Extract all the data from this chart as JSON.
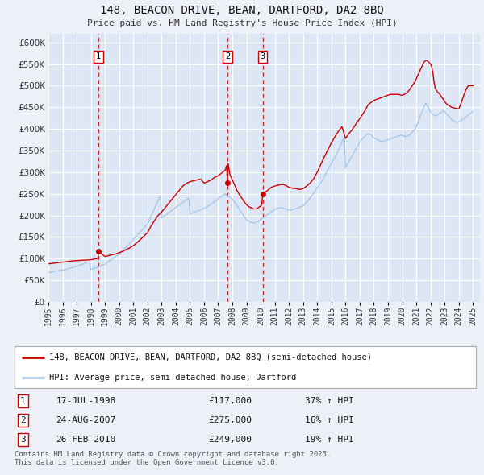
{
  "title": "148, BEACON DRIVE, BEAN, DARTFORD, DA2 8BQ",
  "subtitle": "Price paid vs. HM Land Registry's House Price Index (HPI)",
  "ylim": [
    0,
    620000
  ],
  "yticks": [
    0,
    50000,
    100000,
    150000,
    200000,
    250000,
    300000,
    350000,
    400000,
    450000,
    500000,
    550000,
    600000
  ],
  "ytick_labels": [
    "£0",
    "£50K",
    "£100K",
    "£150K",
    "£200K",
    "£250K",
    "£300K",
    "£350K",
    "£400K",
    "£450K",
    "£500K",
    "£550K",
    "£600K"
  ],
  "background_color": "#edf0f7",
  "plot_bg_color": "#dce6f5",
  "grid_color": "#ffffff",
  "red_line_color": "#cc0000",
  "blue_line_color": "#a8c8e8",
  "legend_label_red": "148, BEACON DRIVE, BEAN, DARTFORD, DA2 8BQ (semi-detached house)",
  "legend_label_blue": "HPI: Average price, semi-detached house, Dartford",
  "transactions": [
    {
      "num": 1,
      "date_str": "17-JUL-1998",
      "price": 117000,
      "pct": "37%",
      "dir": "↑",
      "year": 1998.54
    },
    {
      "num": 2,
      "date_str": "24-AUG-2007",
      "price": 275000,
      "pct": "16%",
      "dir": "↑",
      "year": 2007.65
    },
    {
      "num": 3,
      "date_str": "26-FEB-2010",
      "price": 249000,
      "pct": "19%",
      "dir": "↑",
      "year": 2010.15
    }
  ],
  "footer": "Contains HM Land Registry data © Crown copyright and database right 2025.\nThis data is licensed under the Open Government Licence v3.0.",
  "hpi_years": [
    1995.0,
    1995.08,
    1995.17,
    1995.25,
    1995.33,
    1995.42,
    1995.5,
    1995.58,
    1995.67,
    1995.75,
    1995.83,
    1995.92,
    1996.0,
    1996.08,
    1996.17,
    1996.25,
    1996.33,
    1996.42,
    1996.5,
    1996.58,
    1996.67,
    1996.75,
    1996.83,
    1996.92,
    1997.0,
    1997.08,
    1997.17,
    1997.25,
    1997.33,
    1997.42,
    1997.5,
    1997.58,
    1997.67,
    1997.75,
    1997.83,
    1997.92,
    1998.0,
    1998.08,
    1998.17,
    1998.25,
    1998.33,
    1998.42,
    1998.5,
    1998.58,
    1998.67,
    1998.75,
    1998.83,
    1998.92,
    1999.0,
    1999.08,
    1999.17,
    1999.25,
    1999.33,
    1999.42,
    1999.5,
    1999.58,
    1999.67,
    1999.75,
    1999.83,
    1999.92,
    2000.0,
    2000.08,
    2000.17,
    2000.25,
    2000.33,
    2000.42,
    2000.5,
    2000.58,
    2000.67,
    2000.75,
    2000.83,
    2000.92,
    2001.0,
    2001.08,
    2001.17,
    2001.25,
    2001.33,
    2001.42,
    2001.5,
    2001.58,
    2001.67,
    2001.75,
    2001.83,
    2001.92,
    2002.0,
    2002.08,
    2002.17,
    2002.25,
    2002.33,
    2002.42,
    2002.5,
    2002.58,
    2002.67,
    2002.75,
    2002.83,
    2002.92,
    2003.0,
    2003.08,
    2003.17,
    2003.25,
    2003.33,
    2003.42,
    2003.5,
    2003.58,
    2003.67,
    2003.75,
    2003.83,
    2003.92,
    2004.0,
    2004.08,
    2004.17,
    2004.25,
    2004.33,
    2004.42,
    2004.5,
    2004.58,
    2004.67,
    2004.75,
    2004.83,
    2004.92,
    2005.0,
    2005.08,
    2005.17,
    2005.25,
    2005.33,
    2005.42,
    2005.5,
    2005.58,
    2005.67,
    2005.75,
    2005.83,
    2005.92,
    2006.0,
    2006.08,
    2006.17,
    2006.25,
    2006.33,
    2006.42,
    2006.5,
    2006.58,
    2006.67,
    2006.75,
    2006.83,
    2006.92,
    2007.0,
    2007.08,
    2007.17,
    2007.25,
    2007.33,
    2007.42,
    2007.5,
    2007.58,
    2007.67,
    2007.75,
    2007.83,
    2007.92,
    2008.0,
    2008.08,
    2008.17,
    2008.25,
    2008.33,
    2008.42,
    2008.5,
    2008.58,
    2008.67,
    2008.75,
    2008.83,
    2008.92,
    2009.0,
    2009.08,
    2009.17,
    2009.25,
    2009.33,
    2009.42,
    2009.5,
    2009.58,
    2009.67,
    2009.75,
    2009.83,
    2009.92,
    2010.0,
    2010.08,
    2010.17,
    2010.25,
    2010.33,
    2010.42,
    2010.5,
    2010.58,
    2010.67,
    2010.75,
    2010.83,
    2010.92,
    2011.0,
    2011.08,
    2011.17,
    2011.25,
    2011.33,
    2011.42,
    2011.5,
    2011.58,
    2011.67,
    2011.75,
    2011.83,
    2011.92,
    2012.0,
    2012.08,
    2012.17,
    2012.25,
    2012.33,
    2012.42,
    2012.5,
    2012.58,
    2012.67,
    2012.75,
    2012.83,
    2012.92,
    2013.0,
    2013.08,
    2013.17,
    2013.25,
    2013.33,
    2013.42,
    2013.5,
    2013.58,
    2013.67,
    2013.75,
    2013.83,
    2013.92,
    2014.0,
    2014.08,
    2014.17,
    2014.25,
    2014.33,
    2014.42,
    2014.5,
    2014.58,
    2014.67,
    2014.75,
    2014.83,
    2014.92,
    2015.0,
    2015.08,
    2015.17,
    2015.25,
    2015.33,
    2015.42,
    2015.5,
    2015.58,
    2015.67,
    2015.75,
    2015.83,
    2015.92,
    2016.0,
    2016.08,
    2016.17,
    2016.25,
    2016.33,
    2016.42,
    2016.5,
    2016.58,
    2016.67,
    2016.75,
    2016.83,
    2016.92,
    2017.0,
    2017.08,
    2017.17,
    2017.25,
    2017.33,
    2017.42,
    2017.5,
    2017.58,
    2017.67,
    2017.75,
    2017.83,
    2017.92,
    2018.0,
    2018.08,
    2018.17,
    2018.25,
    2018.33,
    2018.42,
    2018.5,
    2018.58,
    2018.67,
    2018.75,
    2018.83,
    2018.92,
    2019.0,
    2019.08,
    2019.17,
    2019.25,
    2019.33,
    2019.42,
    2019.5,
    2019.58,
    2019.67,
    2019.75,
    2019.83,
    2019.92,
    2020.0,
    2020.08,
    2020.17,
    2020.25,
    2020.33,
    2020.42,
    2020.5,
    2020.58,
    2020.67,
    2020.75,
    2020.83,
    2020.92,
    2021.0,
    2021.08,
    2021.17,
    2021.25,
    2021.33,
    2021.42,
    2021.5,
    2021.58,
    2021.67,
    2021.75,
    2021.83,
    2021.92,
    2022.0,
    2022.08,
    2022.17,
    2022.25,
    2022.33,
    2022.42,
    2022.5,
    2022.58,
    2022.67,
    2022.75,
    2022.83,
    2022.92,
    2023.0,
    2023.08,
    2023.17,
    2023.25,
    2023.33,
    2023.42,
    2023.5,
    2023.58,
    2023.67,
    2023.75,
    2023.83,
    2023.92,
    2024.0,
    2024.08,
    2024.17,
    2024.25,
    2024.33,
    2024.42,
    2024.5,
    2024.58,
    2024.67,
    2024.75,
    2024.83,
    2024.92,
    2025.0
  ],
  "hpi_values": [
    68000,
    68500,
    69000,
    69500,
    70000,
    70500,
    71000,
    71500,
    72000,
    72500,
    73000,
    73500,
    74000,
    74500,
    75000,
    75500,
    76000,
    76800,
    77600,
    78400,
    79200,
    80000,
    80800,
    81600,
    82400,
    83200,
    84000,
    85000,
    86000,
    87000,
    88000,
    89000,
    90000,
    91000,
    92000,
    93000,
    75000,
    76000,
    77000,
    78000,
    79000,
    80000,
    81000,
    82000,
    83000,
    84000,
    85000,
    86000,
    87000,
    89000,
    91000,
    93000,
    95000,
    97000,
    99000,
    101000,
    103000,
    105000,
    107000,
    109000,
    111000,
    113500,
    116000,
    118500,
    121000,
    123500,
    126000,
    129000,
    132000,
    135000,
    138000,
    141000,
    144000,
    147000,
    150000,
    153000,
    156000,
    159000,
    162000,
    165000,
    168000,
    171000,
    174000,
    177000,
    180000,
    186000,
    192000,
    198000,
    204000,
    210000,
    216000,
    222000,
    228000,
    234000,
    240000,
    246000,
    194000,
    196000,
    198000,
    200000,
    202000,
    204000,
    206000,
    208000,
    210000,
    212000,
    214000,
    216000,
    218000,
    220000,
    222000,
    224000,
    226000,
    228000,
    230000,
    232000,
    234000,
    236000,
    238000,
    240000,
    204000,
    205000,
    206000,
    207000,
    208000,
    209000,
    210000,
    211000,
    212000,
    213000,
    214000,
    215000,
    216000,
    217500,
    219000,
    220500,
    222000,
    224000,
    226000,
    228000,
    230000,
    232000,
    234000,
    236000,
    238000,
    240000,
    242000,
    244000,
    246000,
    248000,
    250000,
    248000,
    246000,
    244000,
    242000,
    240000,
    238000,
    234000,
    230000,
    226000,
    222000,
    218000,
    214000,
    210000,
    206000,
    202000,
    198000,
    194000,
    190000,
    188000,
    186000,
    185000,
    184000,
    183000,
    182000,
    183000,
    184000,
    185000,
    186000,
    188000,
    190000,
    192000,
    194000,
    196000,
    198000,
    200000,
    202000,
    204000,
    206000,
    208000,
    210000,
    212000,
    214000,
    215000,
    216000,
    217000,
    218000,
    218000,
    218000,
    217000,
    216000,
    215000,
    214000,
    213000,
    212000,
    212000,
    212000,
    213000,
    214000,
    215000,
    216000,
    217000,
    218000,
    219000,
    220000,
    221000,
    222000,
    225000,
    228000,
    231000,
    234000,
    237000,
    240000,
    244000,
    248000,
    252000,
    256000,
    260000,
    264000,
    268000,
    272000,
    276000,
    280000,
    285000,
    290000,
    295000,
    300000,
    305000,
    310000,
    315000,
    320000,
    325000,
    330000,
    335000,
    340000,
    346000,
    352000,
    358000,
    364000,
    370000,
    376000,
    382000,
    310000,
    315000,
    320000,
    325000,
    330000,
    335000,
    340000,
    345000,
    350000,
    355000,
    360000,
    365000,
    370000,
    373000,
    376000,
    379000,
    382000,
    385000,
    388000,
    388000,
    388000,
    388000,
    385000,
    382000,
    380000,
    378000,
    376000,
    375000,
    374000,
    373000,
    372000,
    372000,
    372000,
    372000,
    373000,
    374000,
    375000,
    376000,
    377000,
    378000,
    379000,
    380000,
    381000,
    382000,
    383000,
    384000,
    385000,
    386000,
    385000,
    384000,
    383000,
    383000,
    383000,
    384000,
    385000,
    388000,
    391000,
    394000,
    397000,
    400000,
    405000,
    412000,
    419000,
    426000,
    433000,
    440000,
    447000,
    454000,
    460000,
    455000,
    450000,
    445000,
    440000,
    437000,
    434000,
    432000,
    431000,
    430000,
    432000,
    434000,
    436000,
    438000,
    440000,
    442000,
    440000,
    437000,
    434000,
    431000,
    428000,
    425000,
    422000,
    420000,
    418000,
    417000,
    416000,
    415000,
    416000,
    418000,
    420000,
    422000,
    424000,
    426000,
    428000,
    430000,
    432000,
    434000,
    436000,
    438000,
    440000
  ],
  "red_years": [
    1995.0,
    1995.25,
    1995.5,
    1995.75,
    1996.0,
    1996.25,
    1996.5,
    1996.75,
    1997.0,
    1997.25,
    1997.5,
    1997.75,
    1998.0,
    1998.25,
    1998.5,
    1998.54,
    1999.0,
    1999.25,
    1999.5,
    1999.75,
    2000.0,
    2000.25,
    2000.5,
    2000.75,
    2001.0,
    2001.25,
    2001.5,
    2001.75,
    2002.0,
    2002.25,
    2002.5,
    2002.75,
    2003.0,
    2003.25,
    2003.5,
    2003.75,
    2004.0,
    2004.25,
    2004.5,
    2004.75,
    2005.0,
    2005.25,
    2005.5,
    2005.75,
    2006.0,
    2006.25,
    2006.5,
    2006.75,
    2007.0,
    2007.25,
    2007.5,
    2007.6,
    2007.65,
    2007.7,
    2007.83,
    2007.92,
    2008.0,
    2008.17,
    2008.33,
    2008.5,
    2008.67,
    2008.83,
    2009.0,
    2009.17,
    2009.33,
    2009.5,
    2009.67,
    2009.83,
    2010.0,
    2010.08,
    2010.15,
    2010.25,
    2010.5,
    2010.75,
    2011.0,
    2011.25,
    2011.5,
    2011.75,
    2012.0,
    2012.25,
    2012.5,
    2012.75,
    2013.0,
    2013.25,
    2013.5,
    2013.75,
    2014.0,
    2014.25,
    2014.5,
    2014.75,
    2015.0,
    2015.25,
    2015.5,
    2015.75,
    2016.0,
    2016.08,
    2016.17,
    2016.25,
    2016.33,
    2016.42,
    2016.5,
    2016.58,
    2016.67,
    2016.75,
    2016.83,
    2016.92,
    2017.0,
    2017.08,
    2017.17,
    2017.25,
    2017.33,
    2017.42,
    2017.5,
    2017.58,
    2017.67,
    2017.75,
    2017.83,
    2017.92,
    2018.0,
    2018.08,
    2018.17,
    2018.25,
    2018.33,
    2018.42,
    2018.5,
    2018.58,
    2018.67,
    2018.75,
    2018.83,
    2018.92,
    2019.0,
    2019.08,
    2019.17,
    2019.25,
    2019.33,
    2019.42,
    2019.5,
    2019.58,
    2019.67,
    2019.75,
    2019.83,
    2019.92,
    2020.0,
    2020.08,
    2020.17,
    2020.25,
    2020.33,
    2020.42,
    2020.5,
    2020.58,
    2020.67,
    2020.75,
    2020.83,
    2020.92,
    2021.0,
    2021.08,
    2021.17,
    2021.25,
    2021.33,
    2021.42,
    2021.5,
    2021.58,
    2021.67,
    2021.75,
    2021.83,
    2021.92,
    2022.0,
    2022.08,
    2022.17,
    2022.25,
    2022.33,
    2022.5,
    2022.67,
    2022.75,
    2022.83,
    2022.92,
    2023.0,
    2023.08,
    2023.25,
    2023.5,
    2023.75,
    2023.92,
    2024.0,
    2024.17,
    2024.33,
    2024.5,
    2024.67,
    2024.83,
    2025.0
  ],
  "red_values": [
    88000,
    89000,
    90000,
    91000,
    92000,
    93000,
    94000,
    95000,
    95500,
    96000,
    96500,
    97000,
    97500,
    99000,
    100500,
    117000,
    105000,
    107000,
    109000,
    111000,
    114000,
    117000,
    121000,
    125000,
    130000,
    137000,
    144000,
    152000,
    160000,
    175000,
    188000,
    200000,
    208000,
    218000,
    228000,
    238000,
    248000,
    258000,
    268000,
    274000,
    278000,
    280000,
    282000,
    284000,
    275000,
    278000,
    282000,
    288000,
    292000,
    298000,
    305000,
    315000,
    275000,
    320000,
    295000,
    288000,
    282000,
    270000,
    258000,
    248000,
    240000,
    232000,
    225000,
    220000,
    218000,
    215000,
    215000,
    218000,
    222000,
    225000,
    249000,
    252000,
    258000,
    265000,
    268000,
    270000,
    272000,
    270000,
    265000,
    263000,
    262000,
    260000,
    262000,
    268000,
    275000,
    285000,
    300000,
    318000,
    335000,
    352000,
    368000,
    382000,
    395000,
    405000,
    378000,
    382000,
    386000,
    390000,
    393000,
    396000,
    400000,
    404000,
    408000,
    412000,
    416000,
    420000,
    424000,
    428000,
    432000,
    436000,
    440000,
    445000,
    450000,
    455000,
    458000,
    460000,
    462000,
    464000,
    466000,
    467000,
    468000,
    469000,
    470000,
    471000,
    472000,
    473000,
    474000,
    475000,
    476000,
    477000,
    478000,
    479000,
    480000,
    480000,
    480000,
    480000,
    480000,
    480000,
    480000,
    480000,
    479000,
    478000,
    478000,
    479000,
    480000,
    482000,
    484000,
    486000,
    490000,
    494000,
    498000,
    502000,
    506000,
    510000,
    516000,
    522000,
    528000,
    534000,
    540000,
    546000,
    552000,
    556000,
    558000,
    558000,
    556000,
    553000,
    550000,
    545000,
    530000,
    510000,
    495000,
    485000,
    480000,
    476000,
    472000,
    468000,
    464000,
    460000,
    455000,
    450000,
    448000,
    447000,
    446000,
    460000,
    475000,
    490000,
    500000,
    500000,
    500000
  ],
  "xmin": 1995,
  "xmax": 2025.5,
  "xtick_years": [
    1995,
    1996,
    1997,
    1998,
    1999,
    2000,
    2001,
    2002,
    2003,
    2004,
    2005,
    2006,
    2007,
    2008,
    2009,
    2010,
    2011,
    2012,
    2013,
    2014,
    2015,
    2016,
    2017,
    2018,
    2019,
    2020,
    2021,
    2022,
    2023,
    2024,
    2025
  ]
}
